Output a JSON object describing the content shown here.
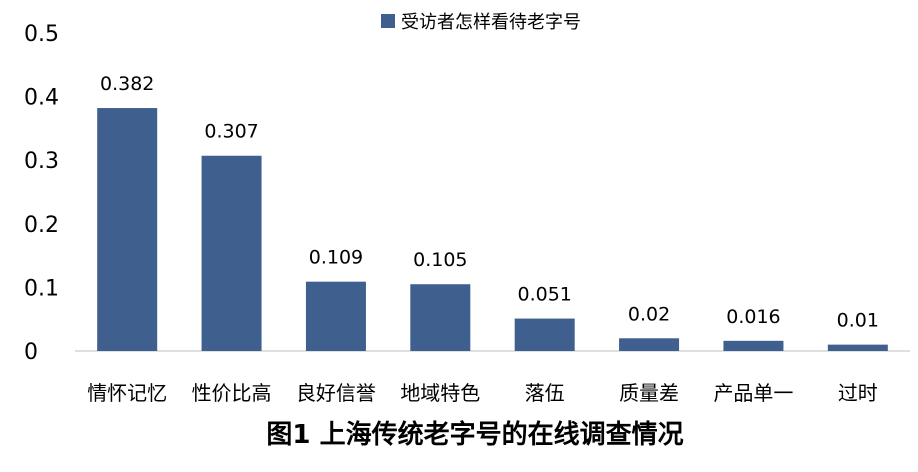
{
  "chart_data": {
    "type": "bar",
    "title": "",
    "caption": "图1  上海传统老字号的在线调查情况",
    "xlabel": "",
    "ylabel": "",
    "ylim": [
      0,
      0.5
    ],
    "yticks": [
      "0",
      "0.1",
      "0.2",
      "0.3",
      "0.4",
      "0.5"
    ],
    "grid": false,
    "legend_position": "top-center",
    "categories": [
      "情怀记忆",
      "性价比高",
      "良好信誉",
      "地域特色",
      "落伍",
      "质量差",
      "产品单一",
      "过时"
    ],
    "series": [
      {
        "name": "受访者怎样看待老字号",
        "color": "#3F5F8F",
        "values": [
          0.382,
          0.307,
          0.109,
          0.105,
          0.051,
          0.02,
          0.016,
          0.01
        ],
        "labels": [
          "0.382",
          "0.307",
          "0.109",
          "0.105",
          "0.051",
          "0.02",
          "0.016",
          "0.01"
        ]
      }
    ]
  }
}
